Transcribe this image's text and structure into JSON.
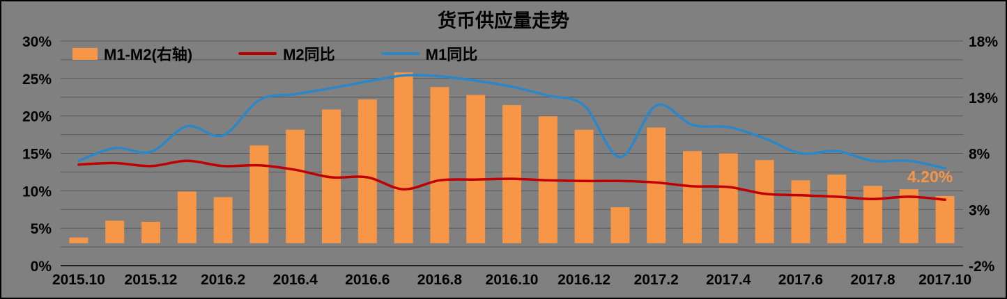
{
  "window": {
    "background_color": "#808080",
    "border_color": "#000000",
    "text_color": "#000000",
    "gridline_color": "#595959"
  },
  "chart_data": {
    "type": "bar",
    "subtype": "bar-line combo, dual axis",
    "title": "货币供应量走势",
    "categories": [
      "2015.10",
      "2015.11",
      "2015.12",
      "2016.1",
      "2016.2",
      "2016.3",
      "2016.4",
      "2016.5",
      "2016.6",
      "2016.7",
      "2016.8",
      "2016.9",
      "2016.10",
      "2016.11",
      "2016.12",
      "2017.1",
      "2017.2",
      "2017.3",
      "2017.4",
      "2017.5",
      "2017.6",
      "2017.7",
      "2017.8",
      "2017.9",
      "2017.10"
    ],
    "x_tick_labels": [
      "2015.10",
      "2015.12",
      "2016.2",
      "2016.4",
      "2016.6",
      "2016.8",
      "2016.10",
      "2016.12",
      "2017.2",
      "2017.4",
      "2017.6",
      "2017.8",
      "2017.10"
    ],
    "series": [
      {
        "name": "M1-M2(右轴)",
        "type": "bar",
        "axis": "right",
        "color": "#F79646",
        "values": [
          0.5,
          2.0,
          1.9,
          4.6,
          4.1,
          8.7,
          10.1,
          11.9,
          12.8,
          15.2,
          13.9,
          13.2,
          12.3,
          11.3,
          10.1,
          3.2,
          10.3,
          8.2,
          8.0,
          7.4,
          5.6,
          6.1,
          5.1,
          4.8,
          4.2
        ]
      },
      {
        "name": "M2同比",
        "type": "line",
        "axis": "left",
        "color": "#C00000",
        "values": [
          13.5,
          13.7,
          13.3,
          14.0,
          13.3,
          13.4,
          12.8,
          11.8,
          11.8,
          10.2,
          11.4,
          11.5,
          11.6,
          11.4,
          11.3,
          11.3,
          11.1,
          10.6,
          10.5,
          9.6,
          9.4,
          9.2,
          8.9,
          9.2,
          8.8
        ]
      },
      {
        "name": "M1同比",
        "type": "line",
        "axis": "left",
        "color": "#2B87C8",
        "values": [
          14.0,
          15.7,
          15.2,
          18.6,
          17.4,
          22.1,
          22.9,
          23.7,
          24.6,
          25.4,
          25.3,
          24.7,
          23.9,
          22.7,
          21.4,
          14.5,
          21.4,
          18.8,
          18.5,
          17.0,
          15.0,
          15.3,
          14.0,
          14.0,
          13.0
        ]
      }
    ],
    "left_axis": {
      "min": 0,
      "max": 30,
      "tick_step": 5,
      "tick_labels": [
        "0%",
        "5%",
        "10%",
        "15%",
        "20%",
        "25%",
        "30%"
      ]
    },
    "right_axis": {
      "min": -2,
      "max": 18,
      "tick_step": 5,
      "tick_labels": [
        "-2%",
        "3%",
        "8%",
        "13%",
        "18%"
      ]
    },
    "grid": {
      "on": true,
      "step": 2.5
    },
    "legend": {
      "position": "top-left-inside",
      "items": [
        {
          "label": "M1-M2(右轴)"
        },
        {
          "label": "M2同比"
        },
        {
          "label": "M1同比"
        }
      ]
    },
    "annotation": {
      "text": "4.20%",
      "color": "#F79646"
    }
  }
}
